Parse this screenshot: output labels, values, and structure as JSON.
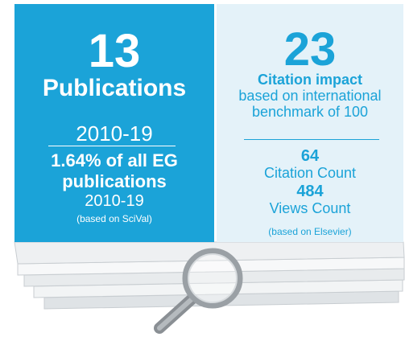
{
  "left_panel": {
    "count": 13,
    "label": "Publications",
    "period": "2010-19",
    "share": "1.64% of all EG",
    "share_label": "publications",
    "share_period": "2010-19",
    "source": "(based on SciVal)"
  },
  "right_panel": {
    "score": 23,
    "label": "Citation impact",
    "description_lines": [
      "based on international",
      "benchmark of 100"
    ],
    "citation_count": 64,
    "citation_label": "Citation Count",
    "views_count": 484,
    "views_label": "Views Count",
    "source": "(based on Elsevier)"
  }
}
